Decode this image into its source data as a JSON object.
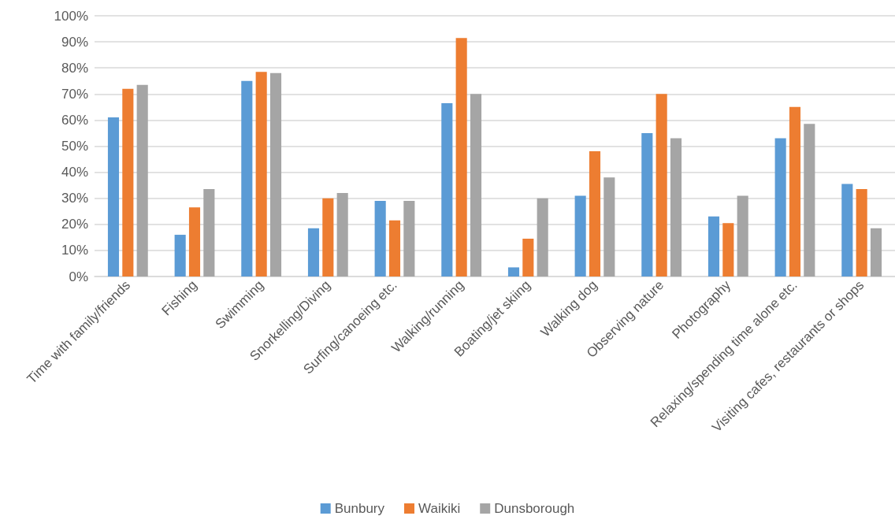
{
  "chart_data": {
    "type": "bar",
    "categories": [
      "Time with family/friends",
      "Fishing",
      "Swimming",
      "Snorkelling/Diving",
      "Surfing/canoeing etc.",
      "Walking/running",
      "Boating/jet skiing",
      "Walking dog",
      "Observing nature",
      "Photography",
      "Relaxing/spending time alone etc.",
      "Visiting cafes, restaurants or shops"
    ],
    "series": [
      {
        "name": "Bunbury",
        "color": "#5b9bd5",
        "values": [
          61,
          16,
          75,
          18.5,
          29,
          66.5,
          3.5,
          31,
          55,
          23,
          53,
          35.5
        ]
      },
      {
        "name": "Waikiki",
        "color": "#ed7d31",
        "values": [
          72,
          26.5,
          78.5,
          30,
          21.5,
          91.5,
          14.5,
          48,
          70,
          20.5,
          65,
          33.5
        ]
      },
      {
        "name": "Dunsborough",
        "color": "#a5a5a5",
        "values": [
          73.5,
          33.5,
          78,
          32,
          29,
          70,
          30,
          38,
          53,
          31,
          58.5,
          18.5
        ]
      }
    ],
    "ylim": [
      0,
      100
    ],
    "yticks": [
      {
        "value": 0,
        "label": "0%"
      },
      {
        "value": 10,
        "label": "10%"
      },
      {
        "value": 20,
        "label": "20%"
      },
      {
        "value": 30,
        "label": "30%"
      },
      {
        "value": 40,
        "label": "40%"
      },
      {
        "value": 50,
        "label": "50%"
      },
      {
        "value": 60,
        "label": "60%"
      },
      {
        "value": 70,
        "label": "70%"
      },
      {
        "value": 80,
        "label": "80%"
      },
      {
        "value": 90,
        "label": "90%"
      },
      {
        "value": 100,
        "label": "100%"
      }
    ],
    "grid": "y",
    "legend": "bottom"
  }
}
